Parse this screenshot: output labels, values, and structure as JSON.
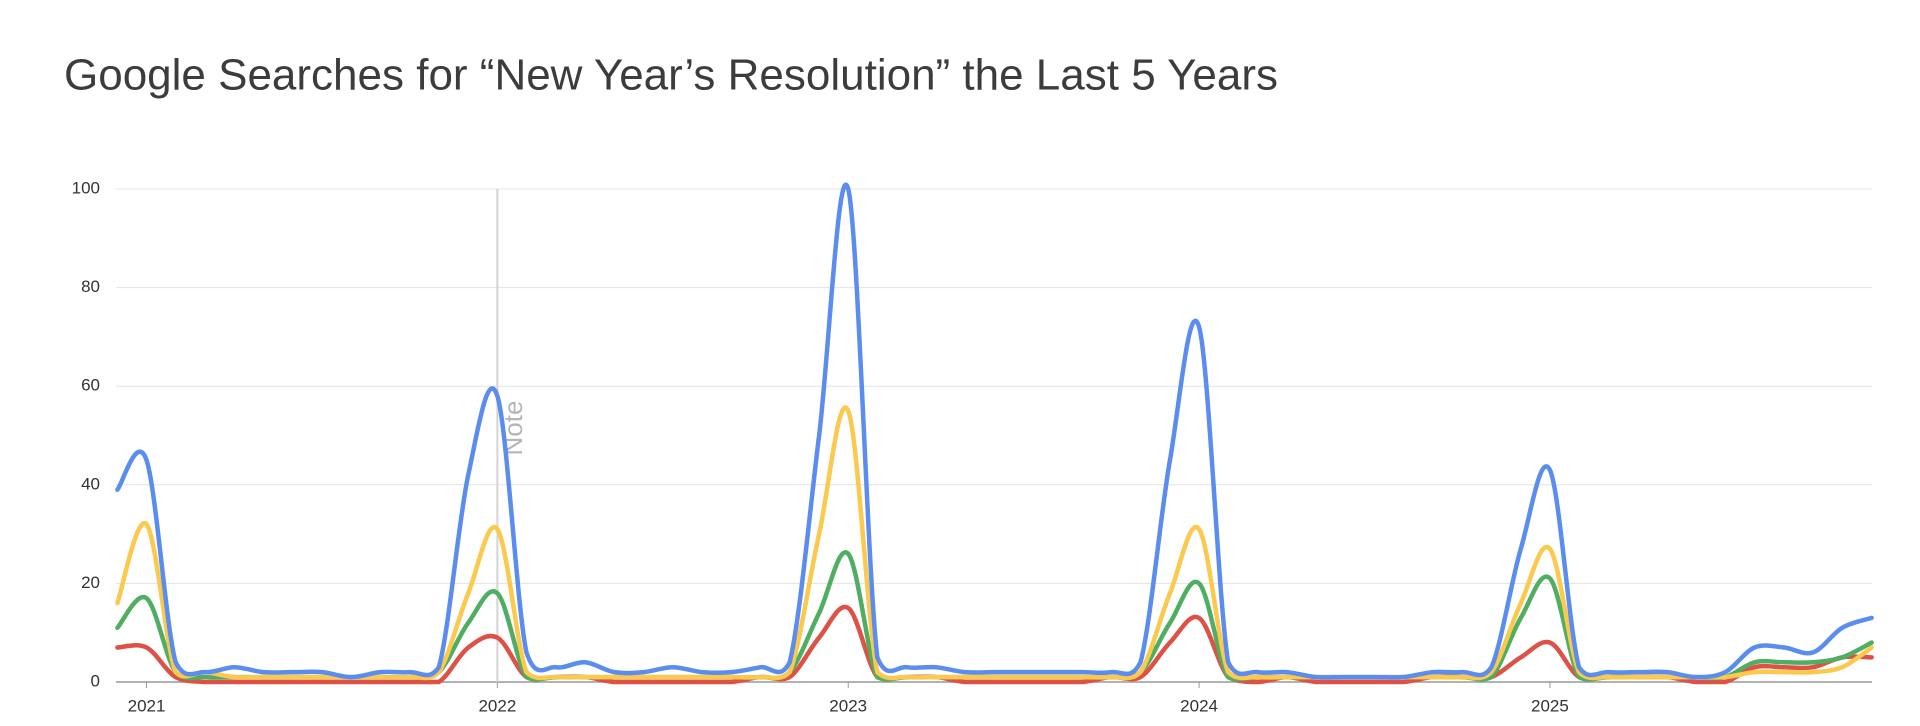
{
  "chart_data": {
    "type": "line",
    "title": "Google Searches for “New Year’s Resolution” the Last 5 Years",
    "x": [
      2020.917,
      2021,
      2021.083,
      2021.167,
      2021.25,
      2021.333,
      2021.417,
      2021.5,
      2021.583,
      2021.667,
      2021.75,
      2021.833,
      2021.917,
      2022,
      2022.083,
      2022.167,
      2022.25,
      2022.333,
      2022.417,
      2022.5,
      2022.583,
      2022.667,
      2022.75,
      2022.833,
      2022.917,
      2023,
      2023.083,
      2023.167,
      2023.25,
      2023.333,
      2023.417,
      2023.5,
      2023.583,
      2023.667,
      2023.75,
      2023.833,
      2023.917,
      2024,
      2024.083,
      2024.167,
      2024.25,
      2024.333,
      2024.417,
      2024.5,
      2024.583,
      2024.667,
      2024.75,
      2024.833,
      2024.917,
      2025,
      2025.083,
      2025.167,
      2025.25,
      2025.333,
      2025.417,
      2025.5,
      2025.583,
      2025.667,
      2025.75,
      2025.833,
      2025.917
    ],
    "series": [
      {
        "color": "#5b8def",
        "values": [
          39,
          45,
          4,
          2,
          3,
          2,
          2,
          2,
          1,
          2,
          2,
          3,
          42,
          58,
          6,
          3,
          4,
          2,
          2,
          3,
          2,
          2,
          3,
          4,
          50,
          100,
          5,
          3,
          3,
          2,
          2,
          2,
          2,
          2,
          2,
          4,
          45,
          72,
          4,
          2,
          2,
          1,
          1,
          1,
          1,
          2,
          2,
          3,
          27,
          43,
          3,
          2,
          2,
          2,
          1,
          2,
          7,
          7,
          6,
          11,
          13
        ]
      },
      {
        "color": "#fbc94d",
        "values": [
          16,
          32,
          2,
          2,
          1,
          1,
          1,
          1,
          1,
          1,
          1,
          2,
          18,
          31,
          2,
          1,
          1,
          1,
          1,
          1,
          1,
          1,
          1,
          2,
          30,
          55,
          2,
          1,
          1,
          1,
          1,
          1,
          1,
          1,
          1,
          2,
          18,
          31,
          2,
          1,
          1,
          1,
          1,
          1,
          1,
          1,
          1,
          2,
          16,
          27,
          2,
          1,
          1,
          1,
          1,
          1,
          2,
          2,
          2,
          3,
          7
        ]
      },
      {
        "color": "#4fae62",
        "values": [
          11,
          17,
          2,
          1,
          1,
          1,
          1,
          1,
          1,
          1,
          1,
          2,
          12,
          18,
          1,
          1,
          1,
          1,
          1,
          1,
          1,
          1,
          1,
          2,
          14,
          26,
          1,
          1,
          1,
          1,
          1,
          1,
          1,
          1,
          1,
          2,
          12,
          20,
          1,
          1,
          1,
          1,
          1,
          1,
          1,
          1,
          1,
          1,
          13,
          21,
          1,
          1,
          1,
          1,
          1,
          1,
          4,
          4,
          4,
          5,
          8
        ]
      },
      {
        "color": "#dd5147",
        "values": [
          7,
          7,
          1,
          0,
          0,
          0,
          0,
          0,
          0,
          0,
          0,
          0,
          7,
          9,
          1,
          1,
          1,
          0,
          0,
          0,
          0,
          0,
          1,
          1,
          9,
          15,
          1,
          1,
          1,
          0,
          0,
          0,
          0,
          0,
          1,
          1,
          8,
          13,
          1,
          0,
          1,
          0,
          0,
          0,
          0,
          1,
          1,
          1,
          5,
          8,
          1,
          1,
          1,
          1,
          0,
          0,
          3,
          3,
          3,
          5,
          5
        ]
      }
    ],
    "xlim": [
      2020.913,
      2025.918
    ],
    "xticks": [
      2021,
      2022,
      2023,
      2024,
      2025
    ],
    "ylim": [
      0,
      100
    ],
    "yticks": [
      0,
      20,
      40,
      60,
      80,
      100
    ],
    "grid": true,
    "annotations": [
      {
        "x": 2022,
        "text": "Note"
      }
    ]
  }
}
